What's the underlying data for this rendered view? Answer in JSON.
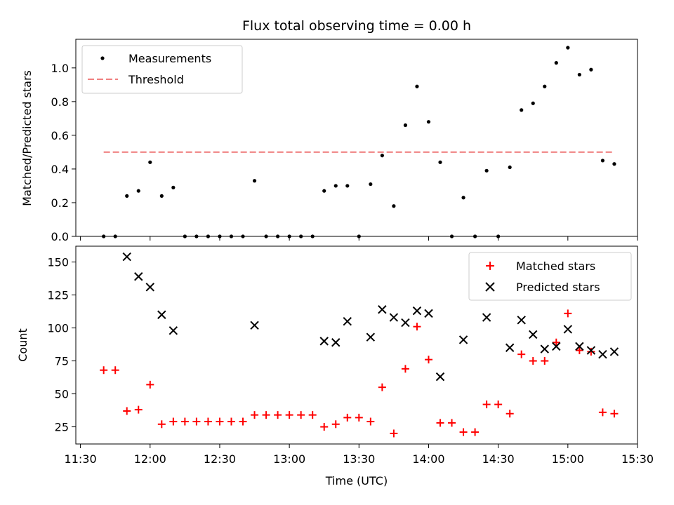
{
  "chart_data": [
    {
      "type": "scatter",
      "title": "Flux total observing time = 0.00 h",
      "ylabel": "Matched/Predicted stars",
      "xlabel": "",
      "xlim": [
        "11:28",
        "15:30"
      ],
      "ylim": [
        0,
        1.17
      ],
      "y_ticks": [
        "0.0",
        "0.2",
        "0.4",
        "0.6",
        "0.8",
        "1.0"
      ],
      "legend": {
        "placement": "upper-left",
        "entries": [
          {
            "label": "Measurements",
            "marker": "dot",
            "color": "#000000"
          },
          {
            "label": "Threshold",
            "marker": "dashed-line",
            "color": "#f08080"
          }
        ]
      },
      "series": [
        {
          "name": "Measurements",
          "color": "#000000",
          "x": [
            "11:40",
            "11:45",
            "11:50",
            "11:55",
            "12:00",
            "12:05",
            "12:10",
            "12:15",
            "12:20",
            "12:25",
            "12:30",
            "12:35",
            "12:40",
            "12:45",
            "12:50",
            "12:55",
            "13:00",
            "13:05",
            "13:10",
            "13:15",
            "13:20",
            "13:25",
            "13:30",
            "13:35",
            "13:40",
            "13:45",
            "13:50",
            "13:55",
            "14:00",
            "14:05",
            "14:10",
            "14:15",
            "14:20",
            "14:25",
            "14:30",
            "14:35",
            "14:40",
            "14:45",
            "14:50",
            "14:55",
            "15:00",
            "15:05",
            "15:10",
            "15:15",
            "15:20"
          ],
          "y": [
            0.0,
            0.0,
            0.24,
            0.27,
            0.44,
            0.24,
            0.29,
            0.0,
            0.0,
            0.0,
            0.0,
            0.0,
            0.0,
            0.33,
            0.0,
            0.0,
            0.0,
            0.0,
            0.0,
            0.27,
            0.3,
            0.3,
            0.0,
            0.31,
            0.48,
            0.18,
            0.66,
            0.89,
            0.68,
            0.44,
            0.0,
            0.23,
            0.0,
            0.39,
            0.0,
            0.41,
            0.75,
            0.79,
            0.89,
            1.03,
            1.12,
            0.96,
            0.99,
            0.45,
            0.43
          ]
        }
      ],
      "threshold": {
        "name": "Threshold",
        "value": 0.5,
        "x_range": [
          "11:40",
          "15:20"
        ],
        "color": "#f08080"
      }
    },
    {
      "type": "scatter",
      "title": "",
      "xlabel": "Time (UTC)",
      "ylabel": "Count",
      "xlim": [
        "11:28",
        "15:30"
      ],
      "ylim": [
        12,
        162
      ],
      "x_ticks": [
        "11:30",
        "12:00",
        "12:30",
        "13:00",
        "13:30",
        "14:00",
        "14:30",
        "15:00",
        "15:30"
      ],
      "y_ticks": [
        "25",
        "50",
        "75",
        "100",
        "125",
        "150"
      ],
      "legend": {
        "placement": "upper-right",
        "entries": [
          {
            "label": "Matched stars",
            "marker": "plus",
            "color": "#ff0000"
          },
          {
            "label": "Predicted stars",
            "marker": "x",
            "color": "#000000"
          }
        ]
      },
      "series": [
        {
          "name": "Matched stars",
          "marker": "plus",
          "color": "#ff0000",
          "x": [
            "11:40",
            "11:45",
            "11:50",
            "11:55",
            "12:00",
            "12:05",
            "12:10",
            "12:15",
            "12:20",
            "12:25",
            "12:30",
            "12:35",
            "12:40",
            "12:45",
            "12:50",
            "12:55",
            "13:00",
            "13:05",
            "13:10",
            "13:15",
            "13:20",
            "13:25",
            "13:30",
            "13:35",
            "13:40",
            "13:45",
            "13:50",
            "13:55",
            "14:00",
            "14:05",
            "14:10",
            "14:15",
            "14:20",
            "14:25",
            "14:30",
            "14:35",
            "14:40",
            "14:45",
            "14:50",
            "14:55",
            "15:00",
            "15:05",
            "15:10",
            "15:15",
            "15:20"
          ],
          "y": [
            68,
            68,
            37,
            38,
            57,
            27,
            29,
            29,
            29,
            29,
            29,
            29,
            29,
            34,
            34,
            34,
            34,
            34,
            34,
            25,
            27,
            32,
            32,
            29,
            55,
            20,
            69,
            101,
            76,
            28,
            28,
            21,
            21,
            42,
            42,
            35,
            80,
            75,
            75,
            89,
            111,
            83,
            82,
            36,
            35
          ]
        },
        {
          "name": "Predicted stars",
          "marker": "x",
          "color": "#000000",
          "x": [
            "11:50",
            "11:55",
            "12:00",
            "12:05",
            "12:10",
            "12:45",
            "13:15",
            "13:20",
            "13:25",
            "13:35",
            "13:40",
            "13:45",
            "13:50",
            "13:55",
            "14:00",
            "14:05",
            "14:15",
            "14:25",
            "14:35",
            "14:40",
            "14:45",
            "14:50",
            "14:55",
            "15:00",
            "15:05",
            "15:10",
            "15:15",
            "15:20"
          ],
          "y": [
            154,
            139,
            131,
            110,
            98,
            102,
            90,
            89,
            105,
            93,
            114,
            108,
            104,
            113,
            111,
            63,
            91,
            108,
            85,
            106,
            95,
            84,
            86,
            99,
            86,
            83,
            80,
            82
          ]
        }
      ]
    }
  ]
}
